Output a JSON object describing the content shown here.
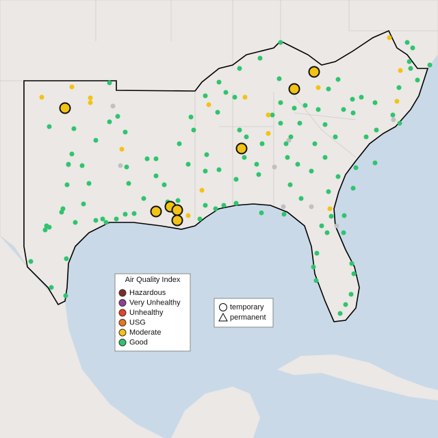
{
  "legend": {
    "title": "Air Quality Index",
    "items": [
      {
        "label": "Hazardous",
        "color": "#7e2b2b"
      },
      {
        "label": "Very Unhealthy",
        "color": "#8f3f97"
      },
      {
        "label": "Unhealthy",
        "color": "#e8412c"
      },
      {
        "label": "USG",
        "color": "#e8761e"
      },
      {
        "label": "Moderate",
        "color": "#f2c314"
      },
      {
        "label": "Good",
        "color": "#2fc46e"
      }
    ]
  },
  "shape_legend": {
    "items": [
      "temporary",
      "permanent"
    ]
  }
}
